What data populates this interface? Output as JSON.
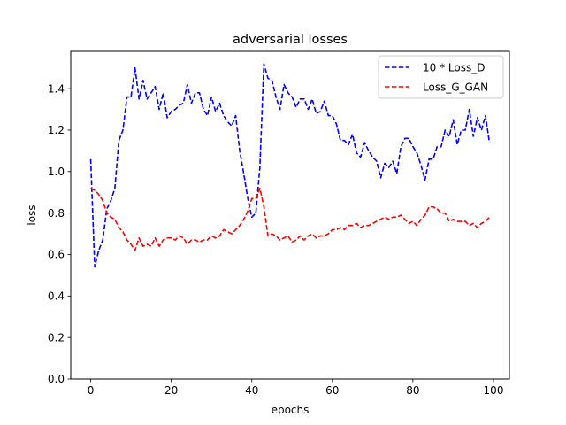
{
  "chart_data": {
    "type": "line",
    "title": "adversarial losses",
    "xlabel": "epochs",
    "ylabel": "loss",
    "xlim": [
      -4.95,
      103.95
    ],
    "ylim": [
      0.0,
      1.58
    ],
    "xticks": [
      0,
      20,
      40,
      60,
      80,
      100
    ],
    "yticks": [
      0.0,
      0.2,
      0.4,
      0.6,
      0.8,
      1.0,
      1.2,
      1.4
    ],
    "legend_position": "upper-right",
    "grid": false,
    "x": [
      0,
      1,
      2,
      3,
      4,
      5,
      6,
      7,
      8,
      9,
      10,
      11,
      12,
      13,
      14,
      15,
      16,
      17,
      18,
      19,
      20,
      21,
      22,
      23,
      24,
      25,
      26,
      27,
      28,
      29,
      30,
      31,
      32,
      33,
      34,
      35,
      36,
      37,
      38,
      39,
      40,
      41,
      42,
      43,
      44,
      45,
      46,
      47,
      48,
      49,
      50,
      51,
      52,
      53,
      54,
      55,
      56,
      57,
      58,
      59,
      60,
      61,
      62,
      63,
      64,
      65,
      66,
      67,
      68,
      69,
      70,
      71,
      72,
      73,
      74,
      75,
      76,
      77,
      78,
      79,
      80,
      81,
      82,
      83,
      84,
      85,
      86,
      87,
      88,
      89,
      90,
      91,
      92,
      93,
      94,
      95,
      96,
      97,
      98,
      99
    ],
    "series": [
      {
        "name": "10 * Loss_D",
        "color": "#0000ff",
        "style": "dashed",
        "values": [
          1.06,
          0.54,
          0.62,
          0.67,
          0.82,
          0.86,
          0.92,
          1.15,
          1.2,
          1.36,
          1.36,
          1.5,
          1.35,
          1.44,
          1.35,
          1.38,
          1.41,
          1.3,
          1.38,
          1.26,
          1.29,
          1.3,
          1.32,
          1.33,
          1.42,
          1.33,
          1.38,
          1.38,
          1.3,
          1.27,
          1.36,
          1.29,
          1.33,
          1.27,
          1.24,
          1.22,
          1.27,
          1.1,
          0.99,
          0.87,
          0.78,
          0.8,
          1.02,
          1.52,
          1.45,
          1.44,
          1.36,
          1.3,
          1.42,
          1.38,
          1.36,
          1.31,
          1.35,
          1.35,
          1.3,
          1.35,
          1.28,
          1.29,
          1.34,
          1.27,
          1.27,
          1.23,
          1.15,
          1.15,
          1.13,
          1.18,
          1.09,
          1.07,
          1.14,
          1.1,
          1.07,
          1.05,
          0.97,
          1.04,
          1.02,
          1.05,
          0.99,
          1.12,
          1.16,
          1.16,
          1.12,
          1.09,
          1.03,
          0.96,
          1.06,
          1.06,
          1.12,
          1.12,
          1.2,
          1.17,
          1.25,
          1.13,
          1.2,
          1.2,
          1.3,
          1.17,
          1.26,
          1.2,
          1.27,
          1.14
        ]
      },
      {
        "name": "Loss_G_GAN",
        "color": "#ff0000",
        "style": "dashed",
        "values": [
          0.92,
          0.91,
          0.89,
          0.86,
          0.8,
          0.78,
          0.77,
          0.73,
          0.71,
          0.67,
          0.65,
          0.62,
          0.68,
          0.64,
          0.65,
          0.64,
          0.68,
          0.64,
          0.67,
          0.68,
          0.68,
          0.67,
          0.69,
          0.68,
          0.65,
          0.67,
          0.67,
          0.66,
          0.67,
          0.67,
          0.69,
          0.68,
          0.69,
          0.72,
          0.71,
          0.7,
          0.72,
          0.74,
          0.77,
          0.81,
          0.87,
          0.87,
          0.92,
          0.83,
          0.69,
          0.7,
          0.69,
          0.67,
          0.68,
          0.69,
          0.66,
          0.67,
          0.69,
          0.67,
          0.69,
          0.7,
          0.68,
          0.69,
          0.69,
          0.7,
          0.72,
          0.72,
          0.73,
          0.72,
          0.74,
          0.74,
          0.75,
          0.73,
          0.74,
          0.74,
          0.75,
          0.76,
          0.77,
          0.78,
          0.77,
          0.78,
          0.78,
          0.79,
          0.77,
          0.75,
          0.76,
          0.74,
          0.77,
          0.79,
          0.83,
          0.83,
          0.82,
          0.8,
          0.8,
          0.76,
          0.77,
          0.76,
          0.76,
          0.76,
          0.74,
          0.75,
          0.73,
          0.75,
          0.76,
          0.78
        ]
      }
    ]
  }
}
